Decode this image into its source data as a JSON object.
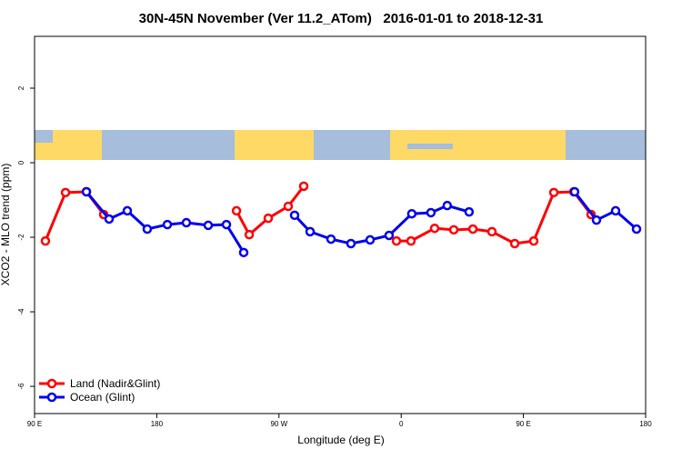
{
  "chart_data": {
    "type": "line",
    "title": "30N-45N November (Ver 11.2_ATom)   2016-01-01 to 2018-12-31",
    "x_label": "Longitude (deg E)",
    "y_label": "XCO2 - MLO trend (ppm)",
    "xlim": [
      90,
      540
    ],
    "xticks": [
      {
        "value": 90,
        "label": "90 E"
      },
      180,
      {
        "value": 270,
        "label": "90 W"
      },
      {
        "value": 360,
        "label": "0"
      },
      {
        "value": 450,
        "label": "90 E"
      },
      {
        "value": 540,
        "label": "180"
      }
    ],
    "ylim": [
      -6.73,
      3.39
    ],
    "yticks": [
      -6,
      -4,
      -2,
      0,
      2
    ],
    "legend": "bottom-left",
    "series": [
      {
        "name": "Land (Nadir&Glint)",
        "color": "#ff0000",
        "x": [
          98.0,
          112.8,
          128.2,
          140.9,
          null,
          238.7,
          248.1,
          262.1,
          276.8,
          288.2,
          null,
          356.5,
          367.2,
          384.6,
          398.7,
          412.8,
          426.8,
          443.6,
          457.6,
          472.4,
          487.1,
          499.8
        ],
        "values": [
          -2.1,
          -0.8,
          -0.78,
          -1.39,
          null,
          -1.29,
          -1.93,
          -1.49,
          -1.17,
          -0.63,
          null,
          -2.1,
          -2.1,
          -1.76,
          -1.8,
          -1.78,
          -1.85,
          -2.17,
          -2.1,
          -0.8,
          -0.78,
          -1.39
        ]
      },
      {
        "name": "Ocean (Glint)",
        "color": "#0000ee",
        "x": [
          128.2,
          144.9,
          158.3,
          173.0,
          187.8,
          201.8,
          217.9,
          231.3,
          244.0,
          null,
          281.5,
          292.9,
          308.3,
          323.0,
          337.1,
          351.1,
          367.8,
          381.9,
          393.9,
          410.0,
          null,
          487.7,
          503.8,
          517.9,
          533.3
        ],
        "values": [
          -0.78,
          -1.51,
          -1.29,
          -1.78,
          -1.66,
          -1.61,
          -1.68,
          -1.66,
          -2.41,
          null,
          -1.41,
          -1.85,
          -2.05,
          -2.17,
          -2.07,
          -1.95,
          -1.37,
          -1.34,
          -1.15,
          -1.32,
          null,
          -0.78,
          -1.54,
          -1.29,
          -1.78
        ]
      }
    ]
  }
}
